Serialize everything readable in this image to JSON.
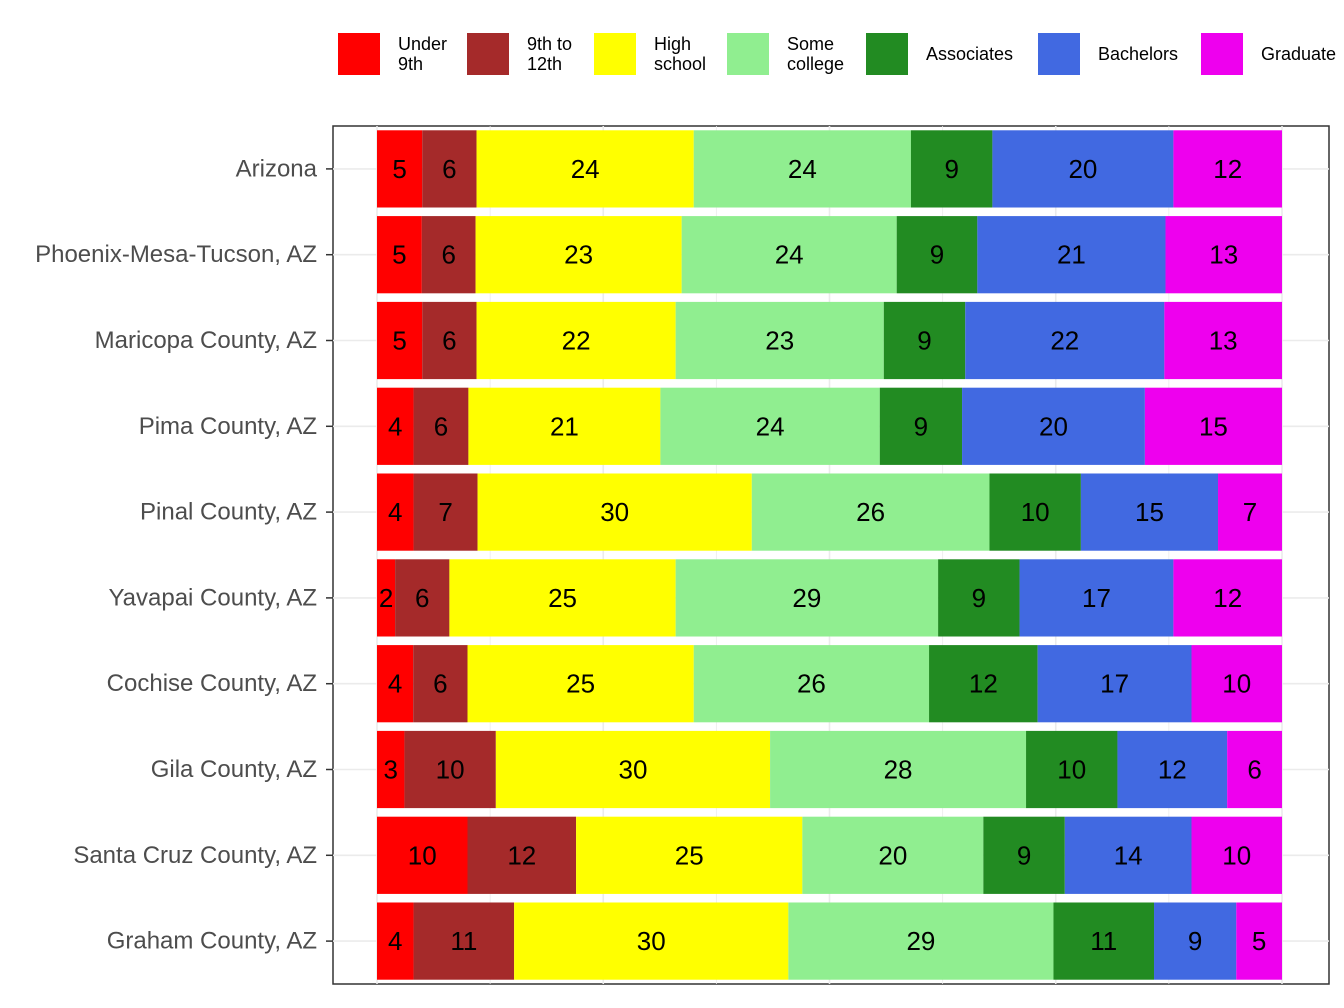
{
  "chart_data": {
    "type": "bar",
    "orientation": "horizontal",
    "stacked": true,
    "normalized": true,
    "categories": [
      "Arizona",
      "Phoenix-Mesa-Tucson, AZ",
      "Maricopa County, AZ",
      "Pima County, AZ",
      "Pinal County, AZ",
      "Yavapai County, AZ",
      "Cochise County, AZ",
      "Gila County, AZ",
      "Santa Cruz County, AZ",
      "Graham County, AZ"
    ],
    "series": [
      {
        "name": "Under 9th",
        "legend_lines": [
          "Under",
          "9th"
        ],
        "color": "#ff0000",
        "values": [
          5,
          5,
          5,
          4,
          4,
          2,
          4,
          3,
          10,
          4
        ]
      },
      {
        "name": "9th to 12th",
        "legend_lines": [
          "9th to",
          "12th"
        ],
        "color": "#a52a2a",
        "values": [
          6,
          6,
          6,
          6,
          7,
          6,
          6,
          10,
          12,
          11
        ]
      },
      {
        "name": "High school",
        "legend_lines": [
          "High",
          "school"
        ],
        "color": "#ffff00",
        "values": [
          24,
          23,
          22,
          21,
          30,
          25,
          25,
          30,
          25,
          30
        ]
      },
      {
        "name": "Some college",
        "legend_lines": [
          "Some",
          "college"
        ],
        "color": "#90ee90",
        "values": [
          24,
          24,
          23,
          24,
          26,
          29,
          26,
          28,
          20,
          29
        ]
      },
      {
        "name": "Associates",
        "legend_lines": [
          "Associates"
        ],
        "color": "#228b22",
        "values": [
          9,
          9,
          9,
          9,
          10,
          9,
          12,
          10,
          9,
          11
        ]
      },
      {
        "name": "Bachelors",
        "legend_lines": [
          "Bachelors"
        ],
        "color": "#4169e1",
        "values": [
          20,
          21,
          22,
          20,
          15,
          17,
          17,
          12,
          14,
          9
        ]
      },
      {
        "name": "Graduate",
        "legend_lines": [
          "Graduate"
        ],
        "color": "#ee00ee",
        "values": [
          12,
          13,
          13,
          15,
          7,
          12,
          10,
          6,
          10,
          5
        ]
      }
    ],
    "title": "",
    "xlabel": "",
    "ylabel": "",
    "legend_position": "top",
    "grid": true
  }
}
